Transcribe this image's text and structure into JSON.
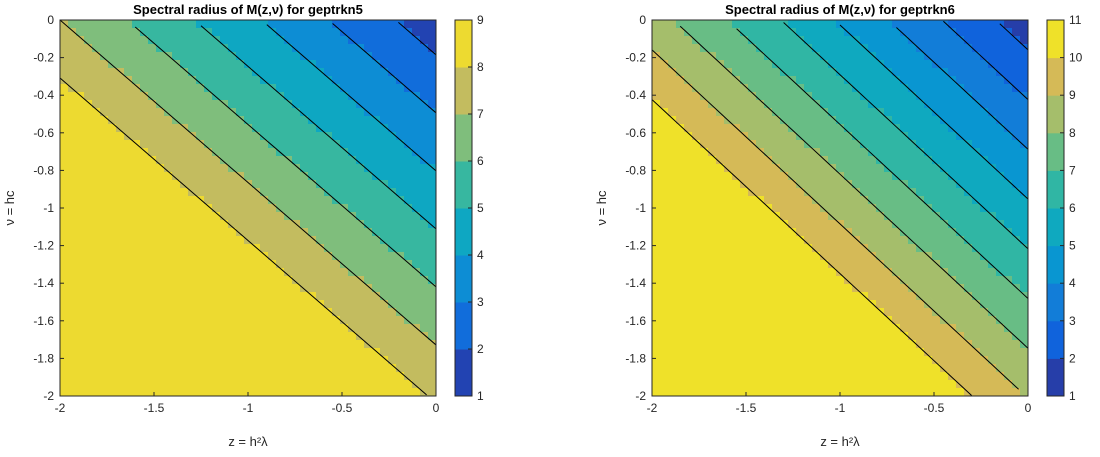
{
  "chart_data": [
    {
      "type": "heatmap",
      "subtype": "filled-contour",
      "title": "Spectral radius of M(z,ν) for geptrkn5",
      "xlabel": "z = h²λ",
      "ylabel": "ν = hc",
      "xlim": [
        -2,
        0
      ],
      "ylim": [
        -2,
        0
      ],
      "xticks": [
        "-2",
        "-1.5",
        "-1",
        "-0.5",
        "0"
      ],
      "yticks": [
        "0",
        "-0.2",
        "-0.4",
        "-0.6",
        "-0.8",
        "-1",
        "-1.2",
        "-1.4",
        "-1.6",
        "-1.8",
        "-2"
      ],
      "colorbar": {
        "min": 1,
        "max": 9,
        "ticks": [
          "1",
          "2",
          "3",
          "4",
          "5",
          "6",
          "7",
          "8",
          "9"
        ]
      },
      "contour_levels": [
        1,
        2,
        3,
        4,
        5,
        6,
        7,
        8,
        9
      ],
      "value_min": 1,
      "value_max": 9,
      "colormap": "parula"
    },
    {
      "type": "heatmap",
      "subtype": "filled-contour",
      "title": "Spectral radius of M(z,ν) for geptrkn6",
      "xlabel": "z = h²λ",
      "ylabel": "ν = hc",
      "xlim": [
        -2,
        0
      ],
      "ylim": [
        -2,
        0
      ],
      "xticks": [
        "-2",
        "-1.5",
        "-1",
        "-0.5",
        "0"
      ],
      "yticks": [
        "0",
        "-0.2",
        "-0.4",
        "-0.6",
        "-0.8",
        "-1",
        "-1.2",
        "-1.4",
        "-1.6",
        "-1.8",
        "-2"
      ],
      "colorbar": {
        "min": 1,
        "max": 11,
        "ticks": [
          "1",
          "2",
          "3",
          "4",
          "5",
          "6",
          "7",
          "8",
          "9",
          "10",
          "11"
        ]
      },
      "contour_levels": [
        1,
        2,
        3,
        4,
        5,
        6,
        7,
        8,
        9,
        10,
        11
      ],
      "value_min": 1,
      "value_max": 11,
      "colormap": "parula"
    }
  ]
}
